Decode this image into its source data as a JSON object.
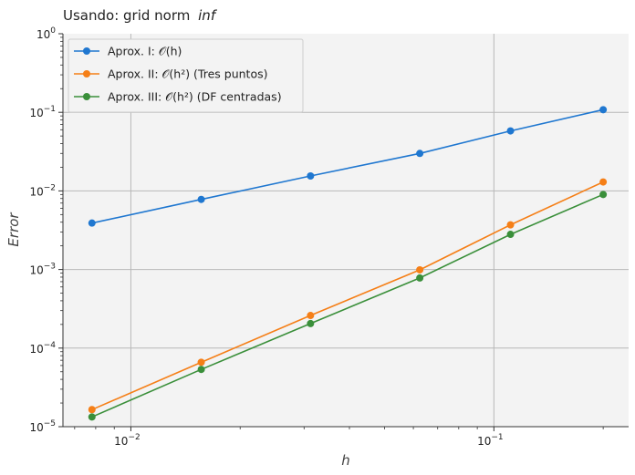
{
  "chart_data": {
    "type": "line",
    "title": "Usando: grid norm",
    "title_emph": "inf",
    "xlabel": "h",
    "ylabel": "Error",
    "xscale": "log",
    "yscale": "log",
    "xlim": [
      0.0065,
      0.235
    ],
    "ylim": [
      1e-05,
      1
    ],
    "grid": true,
    "legend_position": "top-left",
    "x": [
      0.0078125,
      0.015625,
      0.03125,
      0.0625,
      0.1111,
      0.2
    ],
    "series": [
      {
        "name": "Aprox. I: 𝒪(h)",
        "color": "#1f77d0",
        "values": [
          0.0039,
          0.0078,
          0.0155,
          0.03,
          0.058,
          0.108
        ]
      },
      {
        "name": "Aprox. II: 𝒪(h²) (Tres puntos)",
        "color": "#f57f17",
        "values": [
          1.65e-05,
          6.6e-05,
          0.00026,
          0.00099,
          0.0037,
          0.013
        ]
      },
      {
        "name": "Aprox. III: 𝒪(h²) (DF centradas)",
        "color": "#3a8f3a",
        "values": [
          1.33e-05,
          5.35e-05,
          0.000205,
          0.00078,
          0.0028,
          0.009
        ]
      }
    ],
    "x_ticks": [
      {
        "value": 0.01,
        "base": "10",
        "exp": "−2"
      },
      {
        "value": 0.1,
        "base": "10",
        "exp": "−1"
      }
    ],
    "y_ticks": [
      {
        "value": 1,
        "base": "10",
        "exp": "0"
      },
      {
        "value": 0.1,
        "base": "10",
        "exp": "−1"
      },
      {
        "value": 0.01,
        "base": "10",
        "exp": "−2"
      },
      {
        "value": 0.001,
        "base": "10",
        "exp": "−3"
      },
      {
        "value": 0.0001,
        "base": "10",
        "exp": "−4"
      },
      {
        "value": 1e-05,
        "base": "10",
        "exp": "−5"
      }
    ]
  }
}
